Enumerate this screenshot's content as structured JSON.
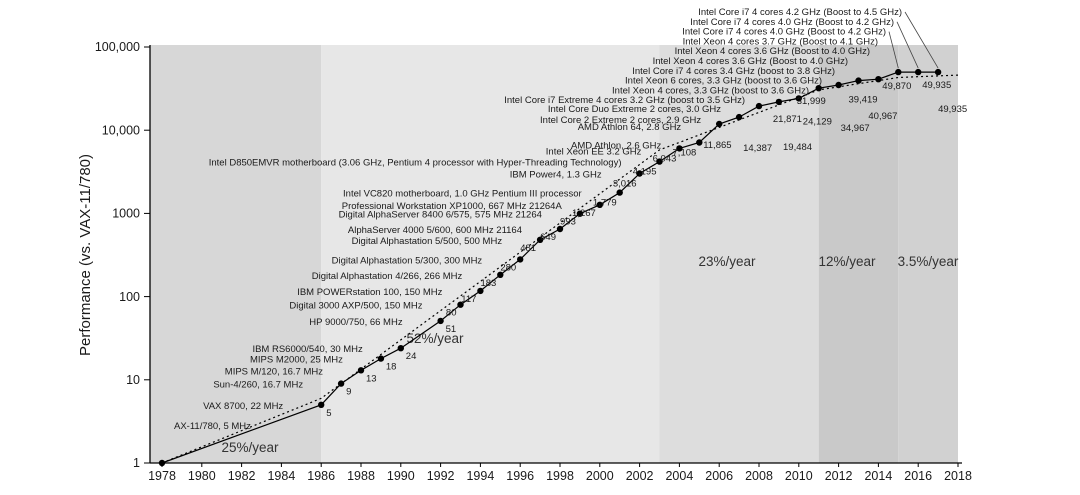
{
  "chart_data": {
    "type": "line",
    "title": "",
    "xlabel": "",
    "ylabel": "Performance (vs. VAX-11/780)",
    "y_scale": "log",
    "ylim": [
      1,
      100000
    ],
    "xlim": [
      1978,
      2018
    ],
    "grid": false,
    "legend": "none",
    "y_ticks": [
      {
        "value": 1,
        "label": "1"
      },
      {
        "value": 10,
        "label": "10"
      },
      {
        "value": 100,
        "label": "100"
      },
      {
        "value": 1000,
        "label": "1000"
      },
      {
        "value": 10000,
        "label": "10,000"
      },
      {
        "value": 100000,
        "label": "100,000"
      }
    ],
    "x_ticks": [
      "1978",
      "1980",
      "1982",
      "1984",
      "1986",
      "1988",
      "1990",
      "1992",
      "1994",
      "1996",
      "1998",
      "2000",
      "2002",
      "2004",
      "2006",
      "2008",
      "2010",
      "2012",
      "2014",
      "2016",
      "2018"
    ],
    "eras": [
      {
        "label": "25%/year",
        "from": 1978,
        "to": 1986,
        "fill": "#d7d7d7"
      },
      {
        "label": "52%/year",
        "from": 1986,
        "to": 2003,
        "fill": "#e7e7e7"
      },
      {
        "label": "23%/year",
        "from": 2003,
        "to": 2011,
        "fill": "#dddddd"
      },
      {
        "label": "12%/year",
        "from": 2011,
        "to": 2015,
        "fill": "#c9c9c9"
      },
      {
        "label": "3.5%/year",
        "from": 2015,
        "to": 2018,
        "fill": "#d1d1d1"
      }
    ],
    "points": [
      {
        "year": 1978,
        "value": 1,
        "value_label": null,
        "callout": "AX-11/780, 5 MHz"
      },
      {
        "year": 1986,
        "value": 5,
        "value_label": "5",
        "callout": "VAX 8700, 22 MHz"
      },
      {
        "year": 1987,
        "value": 9,
        "value_label": "9",
        "callout": "Sun-4/260, 16.7 MHz"
      },
      {
        "year": 1988,
        "value": 13,
        "value_label": "13",
        "callout": "MIPS M/120, 16.7 MHz"
      },
      {
        "year": 1989,
        "value": 18,
        "value_label": "18",
        "callout": "MIPS M2000, 25 MHz"
      },
      {
        "year": 1990,
        "value": 24,
        "value_label": "24",
        "callout": "IBM RS6000/540, 30 MHz"
      },
      {
        "year": 1992,
        "value": 51,
        "value_label": "51",
        "callout": "HP 9000/750, 66 MHz"
      },
      {
        "year": 1993,
        "value": 80,
        "value_label": "80",
        "callout": "Digital 3000 AXP/500, 150 MHz"
      },
      {
        "year": 1994,
        "value": 117,
        "value_label": "117",
        "callout": "IBM POWERstation 100, 150 MHz"
      },
      {
        "year": 1995,
        "value": 183,
        "value_label": "183",
        "callout": "Digital Alphastation 4/266, 266 MHz"
      },
      {
        "year": 1996,
        "value": 280,
        "value_label": "280",
        "callout": "Digital Alphastation 5/300, 300 MHz"
      },
      {
        "year": 1997,
        "value": 481,
        "value_label": "481",
        "callout": "Digital Alphastation 5/500, 500 MHz"
      },
      {
        "year": 1998,
        "value": 649,
        "value_label": "649",
        "callout": "AlphaServer 4000 5/600, 600 MHz 21164"
      },
      {
        "year": 1999,
        "value": 993,
        "value_label": "993",
        "callout": "Digital AlphaServer 8400 6/575, 575 MHz 21264"
      },
      {
        "year": 2000,
        "value": 1267,
        "value_label": "1,267",
        "callout": "Professional Workstation XP1000, 667 MHz 21264A"
      },
      {
        "year": 2001,
        "value": 1779,
        "value_label": "1,779",
        "callout": "Intel VC820 motherboard, 1.0 GHz Pentium III processor"
      },
      {
        "year": 2002,
        "value": 3016,
        "value_label": "3,016",
        "callout": "IBM Power4, 1.3 GHz"
      },
      {
        "year": 2003,
        "value": 4195,
        "value_label": "4,195",
        "callout": "Intel D850EMVR motherboard (3.06 GHz, Pentium 4 processor with Hyper-Threading Technology)"
      },
      {
        "year": 2004,
        "value": 6043,
        "value_label": "6,043",
        "callout": "Intel Xeon EE 3.2 GHz"
      },
      {
        "year": 2005,
        "value": 7108,
        "value_label": "7,108",
        "callout": "AMD Athlon, 2.6 GHz"
      },
      {
        "year": 2006,
        "value": 11865,
        "value_label": "11,865",
        "callout": "AMD Athlon 64, 2.8 GHz"
      },
      {
        "year": 2007,
        "value": 14387,
        "value_label": "14,387",
        "callout": "Intel Core 2 Extreme 2 cores, 2.9 GHz"
      },
      {
        "year": 2008,
        "value": 19484,
        "value_label": "19,484",
        "callout": "Intel Core Duo Extreme 2 cores, 3.0 GHz"
      },
      {
        "year": 2009,
        "value": 21871,
        "value_label": "21,871",
        "callout": null
      },
      {
        "year": 2010,
        "value": 24129,
        "value_label": "24,129",
        "callout": null
      },
      {
        "year": 2011,
        "value": 31999,
        "value_label": "31,999",
        "callout": null
      },
      {
        "year": 2012,
        "value": 34967,
        "value_label": "34,967",
        "callout": null
      },
      {
        "year": 2013,
        "value": 39419,
        "value_label": "39,419",
        "callout": null
      },
      {
        "year": 2014,
        "value": 40967,
        "value_label": "40,967",
        "callout": null
      },
      {
        "year": 2015,
        "value": 49870,
        "value_label": "49,870",
        "callout": null
      },
      {
        "year": 2016,
        "value": 49935,
        "value_label": "49,935",
        "callout": null
      },
      {
        "year": 2017,
        "value": 49935,
        "value_label": "49,935",
        "callout": null
      }
    ],
    "top_callouts": [
      {
        "label": "Intel Core i7 4 cores 4.2 GHz (Boost to 4.5 GHz)",
        "leader_to_year": 2017
      },
      {
        "label": "Intel Core i7 4 cores 4.0 GHz (Boost to 4.2 GHz)",
        "leader_to_year": 2016
      },
      {
        "label": "Intel Core i7 4 cores 4.0 GHz (Boost to 4.2 GHz)",
        "leader_to_year": 2015
      },
      {
        "label": "Intel Xeon 4 cores 3.7 GHz (Boost to 4.1 GHz)",
        "leader_to_year": null
      },
      {
        "label": "Intel Xeon 4 cores 3.6 GHz (Boost to 4.0 GHz)",
        "leader_to_year": null
      },
      {
        "label": "Intel Xeon 4 cores 3.6 GHz (Boost to 4.0 GHz)",
        "leader_to_year": null
      },
      {
        "label": "Intel Core i7 4 cores 3.4 GHz (boost to 3.8 GHz)",
        "leader_to_year": null
      },
      {
        "label": "Intel Xeon 6 cores, 3.3 GHz (boost to 3.6 GHz)",
        "leader_to_year": null
      },
      {
        "label": "Intel Xeon 4 cores, 3.3 GHz (boost to 3.6 GHz)",
        "leader_to_year": null
      },
      {
        "label": "Intel Core i7 Extreme 4 cores 3.2 GHz (boost to 3.5 GHz)",
        "leader_to_year": null
      }
    ],
    "trend_anchors": [
      [
        1978,
        1
      ],
      [
        1986,
        6
      ],
      [
        2003,
        5800
      ],
      [
        2011,
        30500
      ],
      [
        2015,
        43000
      ],
      [
        2018,
        46000
      ]
    ],
    "colors": {
      "line": "#000000",
      "marker": "#000000",
      "axis": "#000000",
      "text": "#1a1a1a"
    }
  }
}
